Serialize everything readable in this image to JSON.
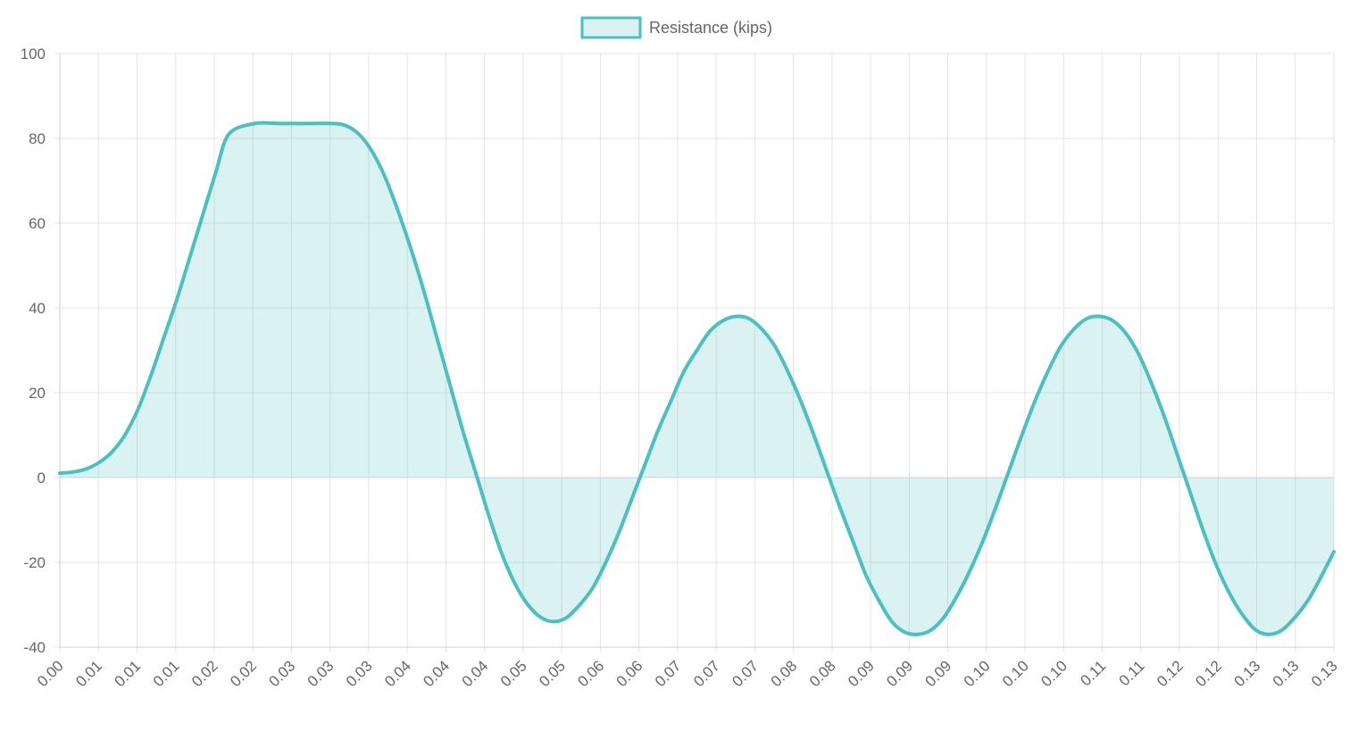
{
  "chart_data": {
    "type": "area",
    "legend": {
      "position": "top-center",
      "label": "Resistance (kips)"
    },
    "series": [
      {
        "name": "Resistance (kips)",
        "color": "#4bc0c0",
        "fill": "rgba(75,192,192,0.2)",
        "x_index_range": [
          0,
          66
        ],
        "x_tick_labels": [
          "0.00",
          "0.01",
          "0.01",
          "0.01",
          "0.02",
          "0.02",
          "0.03",
          "0.03",
          "0.03",
          "0.04",
          "0.04",
          "0.04",
          "0.05",
          "0.05",
          "0.06",
          "0.06",
          "0.07",
          "0.07",
          "0.07",
          "0.08",
          "0.08",
          "0.09",
          "0.09",
          "0.09",
          "0.10",
          "0.10",
          "0.10",
          "0.11",
          "0.11",
          "0.12",
          "0.12",
          "0.13",
          "0.13",
          "0.13"
        ],
        "points": [
          [
            0,
            1
          ],
          [
            0.5,
            1.3
          ],
          [
            1,
            2
          ],
          [
            1.5,
            3.5
          ],
          [
            2,
            6
          ],
          [
            2.5,
            10
          ],
          [
            3,
            16
          ],
          [
            3.5,
            24
          ],
          [
            4,
            33
          ],
          [
            4.5,
            42
          ],
          [
            5,
            52
          ],
          [
            5.5,
            62
          ],
          [
            6,
            72
          ],
          [
            6.5,
            81
          ],
          [
            7.5,
            83.5
          ],
          [
            8.5,
            83.5
          ],
          [
            9.5,
            83.5
          ],
          [
            10.5,
            83.5
          ],
          [
            11,
            83
          ],
          [
            11.5,
            81
          ],
          [
            12,
            77
          ],
          [
            12.5,
            71
          ],
          [
            13,
            63
          ],
          [
            13.5,
            54
          ],
          [
            14,
            44
          ],
          [
            14.5,
            33
          ],
          [
            15,
            22
          ],
          [
            15.5,
            11
          ],
          [
            16,
            1
          ],
          [
            16.5,
            -9
          ],
          [
            17,
            -18
          ],
          [
            17.5,
            -25
          ],
          [
            18,
            -30
          ],
          [
            18.5,
            -33
          ],
          [
            19,
            -34
          ],
          [
            19.5,
            -33
          ],
          [
            20,
            -30
          ],
          [
            20.5,
            -26
          ],
          [
            21,
            -20
          ],
          [
            21.5,
            -13
          ],
          [
            22,
            -5
          ],
          [
            22.5,
            3
          ],
          [
            23,
            11
          ],
          [
            23.5,
            18
          ],
          [
            24,
            25
          ],
          [
            24.5,
            30
          ],
          [
            25,
            34.5
          ],
          [
            25.5,
            37
          ],
          [
            26,
            38
          ],
          [
            26.5,
            37.5
          ],
          [
            27,
            35
          ],
          [
            27.5,
            31
          ],
          [
            28,
            25
          ],
          [
            28.5,
            18
          ],
          [
            29,
            10
          ],
          [
            29.5,
            1.5
          ],
          [
            30,
            -7
          ],
          [
            30.5,
            -15
          ],
          [
            31,
            -23
          ],
          [
            31.5,
            -29
          ],
          [
            32,
            -34
          ],
          [
            32.5,
            -36.5
          ],
          [
            33,
            -37
          ],
          [
            33.5,
            -36
          ],
          [
            34,
            -33
          ],
          [
            34.5,
            -28
          ],
          [
            35,
            -22
          ],
          [
            35.5,
            -15
          ],
          [
            36,
            -7
          ],
          [
            36.5,
            1.5
          ],
          [
            37,
            10
          ],
          [
            37.5,
            18
          ],
          [
            38,
            25
          ],
          [
            38.5,
            31
          ],
          [
            39,
            35
          ],
          [
            39.5,
            37.5
          ],
          [
            40,
            38
          ],
          [
            40.5,
            37
          ],
          [
            41,
            34
          ],
          [
            41.5,
            29
          ],
          [
            42,
            22
          ],
          [
            42.5,
            14
          ],
          [
            43,
            5
          ],
          [
            43.5,
            -4
          ],
          [
            44,
            -13
          ],
          [
            44.5,
            -21
          ],
          [
            45,
            -27.5
          ],
          [
            45.5,
            -32.5
          ],
          [
            46,
            -36
          ],
          [
            46.5,
            -37
          ],
          [
            47,
            -36
          ],
          [
            47.5,
            -33
          ],
          [
            48,
            -29
          ],
          [
            48.5,
            -23.5
          ],
          [
            49,
            -17.5
          ]
        ],
        "xlim": [
          0,
          49
        ]
      }
    ],
    "y_ticks": [
      "100",
      "80",
      "60",
      "40",
      "20",
      "0",
      "-20",
      "-40"
    ],
    "ylim": [
      -40,
      100
    ],
    "grid": true
  }
}
